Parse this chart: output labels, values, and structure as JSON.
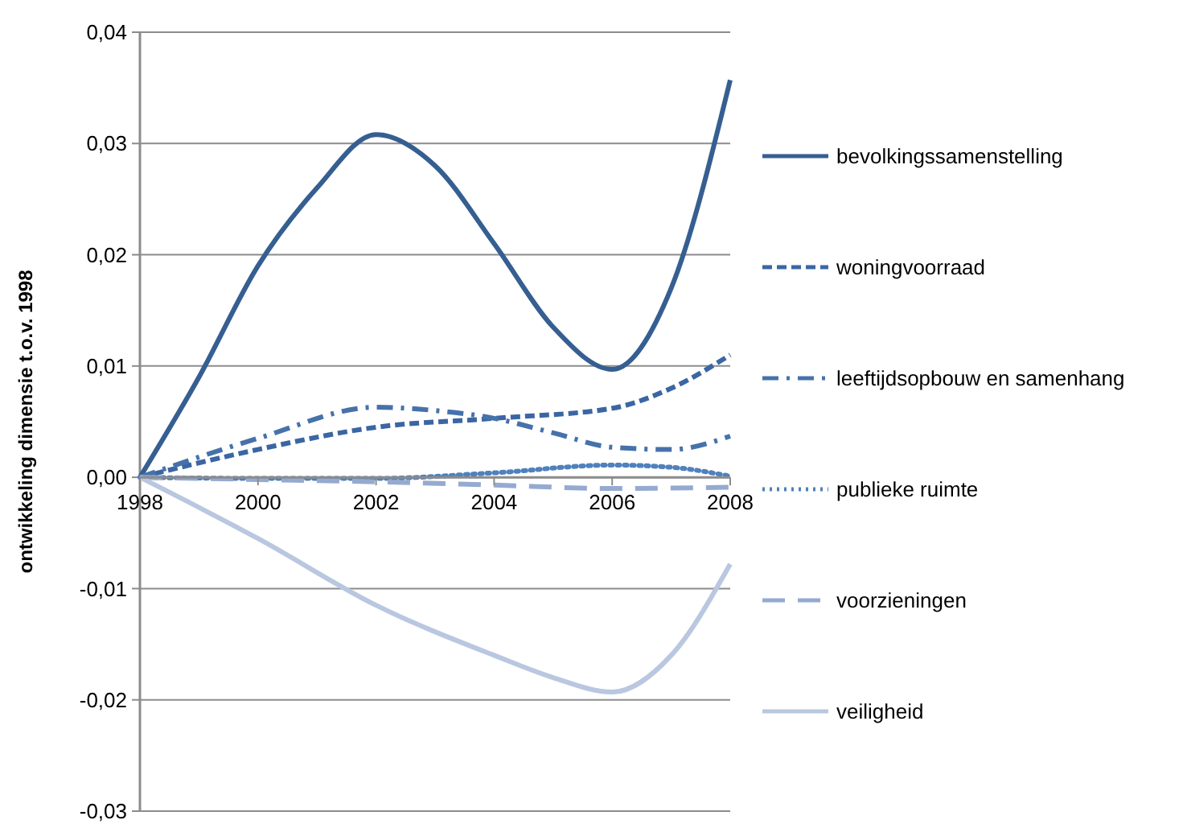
{
  "chart_data": {
    "type": "line",
    "ylabel": "ontwikkeling dimensie t.o.v. 1998",
    "xlim": [
      1998,
      2008
    ],
    "xticks": [
      1998,
      2000,
      2002,
      2004,
      2006,
      2008
    ],
    "ylim": [
      -0.03,
      0.04
    ],
    "yticks": [
      {
        "value": -0.03,
        "label": "-0,03"
      },
      {
        "value": -0.02,
        "label": "-0,02"
      },
      {
        "value": -0.01,
        "label": "-0,01"
      },
      {
        "value": 0,
        "label": "0,00"
      },
      {
        "value": 0.01,
        "label": "0,01"
      },
      {
        "value": 0.02,
        "label": "0,02"
      },
      {
        "value": 0.03,
        "label": "0,03"
      },
      {
        "value": 0.04,
        "label": "0,04"
      }
    ],
    "grid": "y",
    "legend": "right",
    "series": [
      {
        "name": "bevolkingssamenstelling",
        "color": "#365f91",
        "line_style": "solid",
        "x": [
          1998,
          1999,
          2000,
          2001,
          2002,
          2003,
          2004,
          2005,
          2006,
          2007,
          2008
        ],
        "values": [
          0,
          0.009,
          0.019,
          0.026,
          0.0308,
          0.028,
          0.021,
          0.0135,
          0.0097,
          0.017,
          0.0357
        ]
      },
      {
        "name": "woningvoorraad",
        "color": "#3b66a3",
        "line_style": "dashed",
        "x": [
          1998,
          2000,
          2002,
          2004,
          2006,
          2007,
          2008
        ],
        "values": [
          0,
          0.0025,
          0.0045,
          0.0053,
          0.0062,
          0.008,
          0.011
        ]
      },
      {
        "name": "leeftijdsopbouw en samenhang",
        "color": "#4672ab",
        "line_style": "dashdot",
        "x": [
          1998,
          2000,
          2002,
          2003,
          2004,
          2005,
          2006,
          2007,
          2008
        ],
        "values": [
          0,
          0.0035,
          0.0063,
          0.006,
          0.0053,
          0.004,
          0.0027,
          0.0025,
          0.0037
        ]
      },
      {
        "name": "publieke ruimte",
        "color": "#4f81bd",
        "line_style": "dotted",
        "x": [
          1998,
          2000,
          2002,
          2004,
          2006,
          2007,
          2008
        ],
        "values": [
          0,
          -0.0001,
          -0.0001,
          0.0004,
          0.0011,
          0.0009,
          0.0001
        ]
      },
      {
        "name": "voorzieningen",
        "color": "#95aad0",
        "line_style": "longdash",
        "x": [
          1998,
          2000,
          2002,
          2004,
          2006,
          2008
        ],
        "values": [
          0,
          -0.0002,
          -0.0004,
          -0.0007,
          -0.001,
          -0.0009
        ]
      },
      {
        "name": "veiligheid",
        "color": "#b9c7e0",
        "line_style": "solid",
        "x": [
          1998,
          2000,
          2002,
          2004,
          2005,
          2006,
          2007,
          2008
        ],
        "values": [
          0,
          -0.0055,
          -0.0115,
          -0.016,
          -0.018,
          -0.0193,
          -0.016,
          -0.0078
        ]
      }
    ]
  }
}
